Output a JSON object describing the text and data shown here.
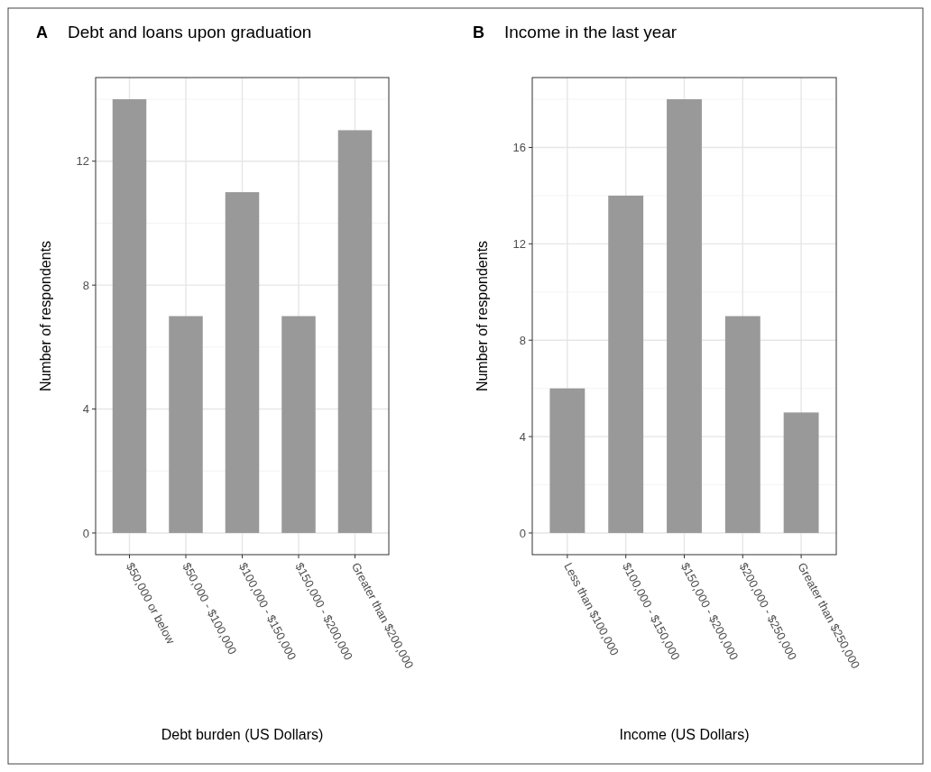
{
  "chart_data": [
    {
      "type": "bar",
      "title": "Debt and loans upon graduation",
      "annotations": [
        "A"
      ],
      "xlabel": "Debt burden (US Dollars)",
      "ylabel": "Number of respondents",
      "categories": [
        "$50,000 or below",
        "$50,000 - $100,000",
        "$100,000 - $150,000",
        "$150,000 - $200,000",
        "Greater than $200,000"
      ],
      "values": [
        14,
        7,
        11,
        7,
        13
      ],
      "color": "#999999",
      "ylim": [
        -0.7,
        14.7
      ],
      "yticks": [
        0,
        4,
        8,
        12
      ],
      "grid": true
    },
    {
      "type": "bar",
      "title": "Income in the last year",
      "annotations": [
        "B"
      ],
      "xlabel": "Income (US Dollars)",
      "ylabel": "Number of respondents",
      "categories": [
        "Less than $100,000",
        "$100,000 - $150,000",
        "$150,000 - $200,000",
        "$200,000 - $250,000",
        "Greater than $250,000"
      ],
      "values": [
        6,
        14,
        18,
        9,
        5
      ],
      "color": "#999999",
      "ylim": [
        -0.9,
        18.9
      ],
      "yticks": [
        0,
        4,
        8,
        12,
        16
      ],
      "grid": true
    }
  ]
}
